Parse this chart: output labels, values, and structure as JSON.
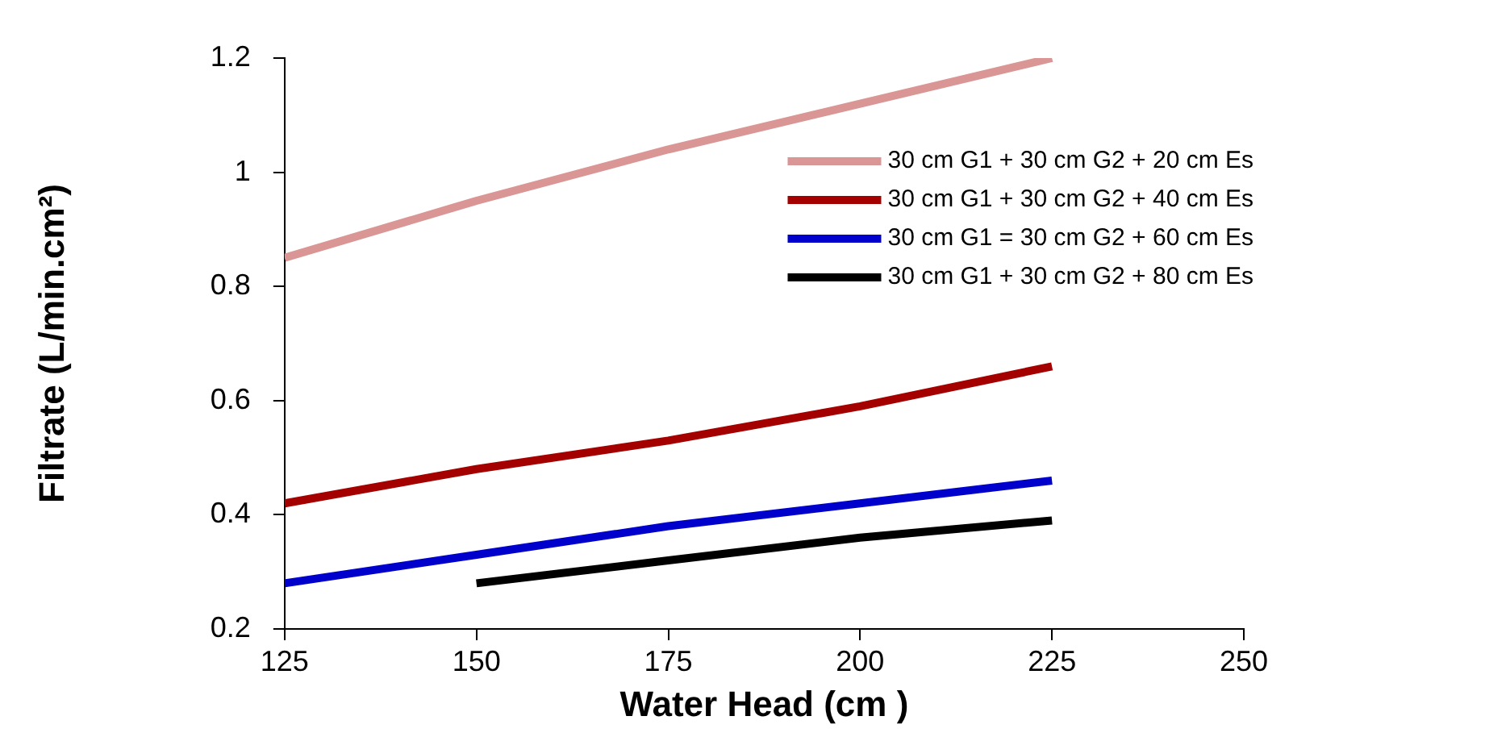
{
  "chart_data": {
    "type": "line",
    "xlabel": "Water Head (cm )",
    "ylabel": "Filtrate (L/min.cm²)",
    "x": [
      125,
      150,
      175,
      200,
      225
    ],
    "series": [
      {
        "name": "30 cm G1 + 30 cm G2 + 20 cm Es",
        "color": "#d99694",
        "values": [
          0.85,
          0.95,
          1.04,
          1.12,
          1.2
        ]
      },
      {
        "name": "30 cm G1 + 30 cm G2 + 40 cm Es",
        "color": "#a50000",
        "values": [
          0.42,
          0.48,
          0.53,
          0.59,
          0.66
        ]
      },
      {
        "name": "30 cm G1 = 30 cm G2 + 60 cm Es",
        "color": "#0000cc",
        "values": [
          0.28,
          0.33,
          0.38,
          0.42,
          0.46
        ]
      },
      {
        "name": "30 cm G1 + 30 cm G2 + 80 cm Es",
        "color": "#000000",
        "values": [
          null,
          0.28,
          0.32,
          0.36,
          0.39
        ]
      }
    ],
    "xlim": [
      125,
      250
    ],
    "xticks": [
      125,
      150,
      175,
      200,
      225,
      250
    ],
    "ylim": [
      0.2,
      1.2
    ],
    "yticks": [
      0.2,
      0.4,
      0.6,
      0.8,
      1,
      1.2
    ],
    "grid": false,
    "legend": "top right",
    "marker": "none",
    "line_style": "solid"
  }
}
